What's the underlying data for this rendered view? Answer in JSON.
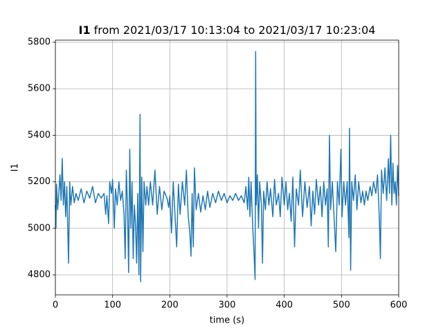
{
  "chart_data": {
    "type": "line",
    "title": [
      "I1",
      "from 2021/03/17 10:13:04 to 2021/03/17 10:23:04"
    ],
    "xlabel": "time (s)",
    "ylabel": "I1",
    "color": "#1f77b4",
    "grid": true,
    "xlim": [
      0,
      600
    ],
    "xticks": [
      0,
      100,
      200,
      300,
      400,
      500,
      600
    ],
    "ylim": [
      4714,
      5809
    ],
    "yticks": [
      4800,
      5000,
      5200,
      5400,
      5600,
      5800
    ],
    "x": [
      0,
      1,
      2,
      4,
      6,
      8,
      10,
      12,
      14,
      16,
      18,
      20,
      22,
      23,
      25,
      27,
      30,
      33,
      36,
      40,
      45,
      50,
      55,
      60,
      65,
      70,
      75,
      80,
      85,
      88,
      90,
      93,
      95,
      98,
      100,
      103,
      105,
      108,
      111,
      114,
      117,
      120,
      122,
      124,
      126,
      128,
      130,
      132,
      134,
      136,
      138,
      140,
      142,
      144,
      146,
      148,
      149,
      151,
      153,
      155,
      158,
      160,
      163,
      166,
      170,
      174,
      178,
      182,
      186,
      190,
      195,
      198,
      200,
      203,
      206,
      209,
      212,
      215,
      218,
      222,
      226,
      229,
      232,
      235,
      237,
      239,
      241,
      243,
      246,
      250,
      254,
      258,
      262,
      266,
      270,
      275,
      280,
      285,
      290,
      295,
      300,
      305,
      310,
      315,
      320,
      325,
      330,
      333,
      336,
      338,
      340,
      342,
      345,
      347,
      349,
      350,
      351,
      353,
      355,
      357,
      360,
      362,
      364,
      367,
      370,
      373,
      376,
      380,
      383,
      386,
      390,
      393,
      396,
      400,
      403,
      406,
      409,
      412,
      415,
      418,
      421,
      425,
      428,
      432,
      436,
      440,
      444,
      447,
      450,
      453,
      456,
      460,
      463,
      466,
      469,
      472,
      475,
      477,
      479,
      481,
      484,
      487,
      490,
      493,
      496,
      499,
      501,
      504,
      507,
      510,
      513,
      514,
      516,
      518,
      521,
      524,
      527,
      530,
      534,
      537,
      540,
      543,
      546,
      550,
      553,
      556,
      560,
      563,
      566,
      568,
      570,
      573,
      576,
      579,
      582,
      584,
      586,
      588,
      590,
      592,
      594,
      596,
      598,
      600
    ],
    "values": [
      5100,
      5000,
      5190,
      5080,
      5150,
      5230,
      5120,
      5300,
      5100,
      5200,
      5050,
      5180,
      4960,
      4850,
      5200,
      5100,
      5180,
      5110,
      5150,
      5120,
      5170,
      5110,
      5160,
      5130,
      5180,
      5110,
      5150,
      5130,
      5150,
      5060,
      5140,
      5020,
      5200,
      5150,
      5210,
      5000,
      5170,
      5100,
      5200,
      5120,
      5160,
      5060,
      4870,
      5250,
      5100,
      4810,
      5340,
      5000,
      5200,
      4870,
      5100,
      5020,
      4850,
      5150,
      4800,
      5490,
      4770,
      5220,
      4900,
      5200,
      5100,
      5180,
      5100,
      5200,
      5100,
      5250,
      5060,
      5180,
      5080,
      5160,
      5130,
      5090,
      5140,
      4980,
      5200,
      5060,
      4920,
      5190,
      5060,
      5200,
      5100,
      5250,
      5060,
      4980,
      4880,
      5150,
      4920,
      5260,
      5080,
      5150,
      5070,
      5140,
      5080,
      5160,
      5090,
      5150,
      5110,
      5160,
      5120,
      5150,
      5110,
      5140,
      5120,
      5150,
      5120,
      5140,
      5110,
      5180,
      5080,
      5220,
      5050,
      5200,
      5000,
      4900,
      4780,
      5760,
      5100,
      5230,
      5000,
      5200,
      5100,
      4850,
      5160,
      5080,
      5200,
      5100,
      5170,
      5050,
      5210,
      5100,
      5150,
      5050,
      5220,
      5100,
      5200,
      5080,
      5150,
      5030,
      5220,
      4920,
      5170,
      5100,
      5250,
      5050,
      5200,
      5090,
      5180,
      5010,
      5160,
      5060,
      5210,
      5100,
      5180,
      5050,
      5200,
      5100,
      5170,
      4920,
      5400,
      5080,
      5200,
      5050,
      4900,
      5200,
      5100,
      5340,
      5050,
      5200,
      5100,
      5200,
      4960,
      5430,
      4820,
      5200,
      5120,
      5230,
      5080,
      5200,
      5110,
      5160,
      5100,
      5160,
      5120,
      5180,
      5140,
      5200,
      5150,
      5230,
      5050,
      4870,
      5250,
      5150,
      5260,
      5120,
      5300,
      5150,
      5400,
      5100,
      5280,
      5150,
      5200,
      5100,
      5270,
      5140
    ]
  }
}
